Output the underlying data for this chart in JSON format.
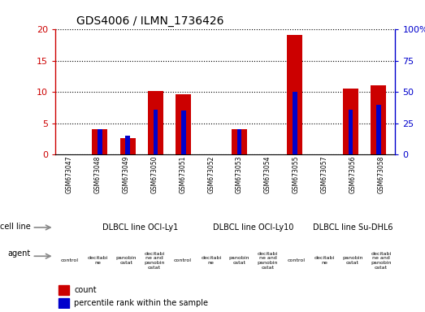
{
  "title": "GDS4006 / ILMN_1736426",
  "samples": [
    "GSM673047",
    "GSM673048",
    "GSM673049",
    "GSM673050",
    "GSM673051",
    "GSM673052",
    "GSM673053",
    "GSM673054",
    "GSM673055",
    "GSM673057",
    "GSM673056",
    "GSM673058"
  ],
  "counts": [
    0.0,
    4.0,
    2.6,
    10.2,
    9.7,
    0.0,
    4.0,
    0.0,
    19.2,
    0.0,
    10.5,
    11.1
  ],
  "percentiles": [
    0,
    20,
    15,
    36,
    35,
    0,
    20,
    0,
    50,
    0,
    36,
    40
  ],
  "left_ylim": [
    0,
    20
  ],
  "right_ylim": [
    0,
    100
  ],
  "left_yticks": [
    0,
    5,
    10,
    15,
    20
  ],
  "right_yticks": [
    0,
    25,
    50,
    75,
    100
  ],
  "right_yticklabels": [
    "0",
    "25",
    "50",
    "75",
    "100%"
  ],
  "left_ycolor": "#cc0000",
  "right_ycolor": "#0000cc",
  "bar_color": "#cc0000",
  "percentile_color": "#0000cc",
  "cell_line_data": [
    {
      "label": "DLBCL line OCI-Ly1",
      "start": 1,
      "end": 5,
      "color": "#aaffaa"
    },
    {
      "label": "DLBCL line OCI-Ly10",
      "start": 5,
      "end": 9,
      "color": "#66ee66"
    },
    {
      "label": "DLBCL line Su-DHL6",
      "start": 9,
      "end": 12,
      "color": "#44cc44"
    }
  ],
  "agent_labels": [
    "control",
    "decitabi\nne",
    "panobin\nostat",
    "decitabi\nne and\npanobin\nostat",
    "control",
    "decitabi\nne",
    "panobin\nostat",
    "decitabi\nne and\npanobin\nostat",
    "control",
    "decitabi\nne",
    "panobin\nostat",
    "decitabi\nne and\npanobin\nostat"
  ],
  "agent_colors": [
    "#ffffff",
    "#ffaaff",
    "#ff77ff",
    "#ff44ff",
    "#ffffff",
    "#ffaaff",
    "#ff77ff",
    "#ff44ff",
    "#ffffff",
    "#ffaaff",
    "#ff77ff",
    "#ff44ff"
  ],
  "legend_count_color": "#cc0000",
  "legend_percentile_color": "#0000cc",
  "sample_bg_color": "#cccccc"
}
